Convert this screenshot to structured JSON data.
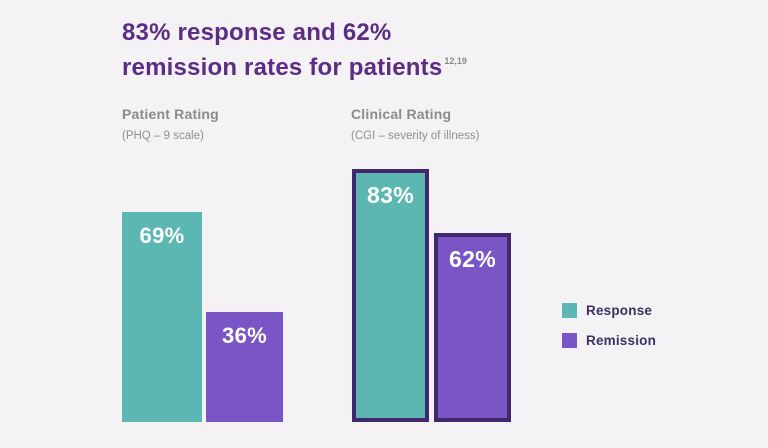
{
  "title": {
    "line1": "83% response and 62%",
    "line2": "remission rates for patients",
    "superscript": "12,19",
    "color": "#5b2d85"
  },
  "groups": [
    {
      "label": "Patient Rating",
      "sublabel": "(PHQ – 9 scale)"
    },
    {
      "label": "Clinical Rating",
      "sublabel": "(CGI – severity of illness)"
    }
  ],
  "legend": [
    {
      "label": "Response",
      "color": "#5cb6b1"
    },
    {
      "label": "Remission",
      "color": "#7a55c6"
    }
  ],
  "chart_data": {
    "type": "bar",
    "title": "83% response and 62% remission rates for patients",
    "ylim": [
      0,
      100
    ],
    "grid": false,
    "legend_position": "right",
    "outline_color": "#40286f",
    "label_color": "#ffffff",
    "categories": [
      "Patient Rating (PHQ – 9 scale)",
      "Clinical Rating (CGI – severity of illness)"
    ],
    "series": [
      {
        "name": "Response",
        "color": "#5cb6b1",
        "values": [
          69,
          83
        ]
      },
      {
        "name": "Remission",
        "color": "#7a55c6",
        "values": [
          36,
          62
        ]
      }
    ],
    "groups": [
      {
        "category": "Patient Rating (PHQ – 9 scale)",
        "bars": [
          {
            "series": "Response",
            "value": 69,
            "label": "69%",
            "color": "#5cb6b1",
            "outlined": false,
            "bold_label": false
          },
          {
            "series": "Remission",
            "value": 36,
            "label": "36%",
            "color": "#7a55c6",
            "outlined": false,
            "bold_label": false
          }
        ]
      },
      {
        "category": "Clinical Rating (CGI – severity of illness)",
        "bars": [
          {
            "series": "Response",
            "value": 83,
            "label": "83%",
            "color": "#5cb6b1",
            "outlined": true,
            "bold_label": true
          },
          {
            "series": "Remission",
            "value": 62,
            "label": "62%",
            "color": "#7a55c6",
            "outlined": true,
            "bold_label": true
          }
        ]
      }
    ]
  }
}
